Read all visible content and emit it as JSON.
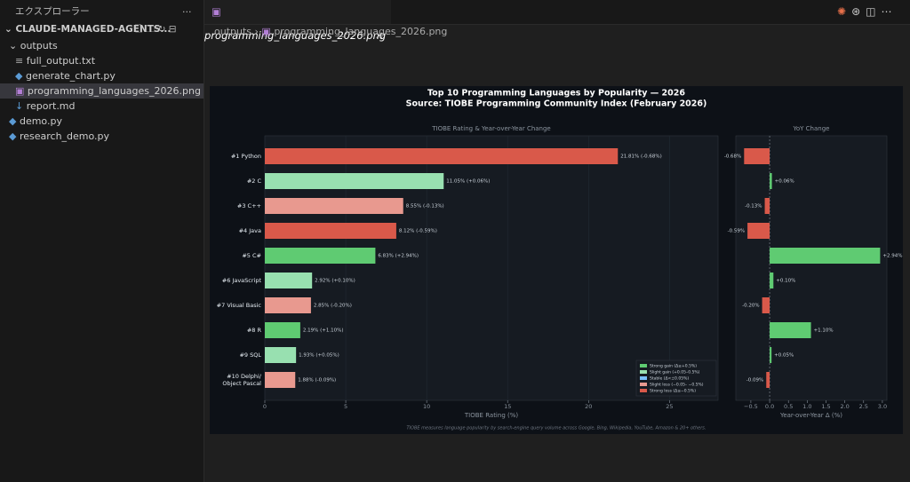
{
  "sidebar": {
    "title": "エクスプローラー",
    "root": "CLAUDE-MANAGED-AGENTS...",
    "tree": [
      {
        "label": "outputs"
      },
      {
        "label": "full_output.txt"
      },
      {
        "label": "generate_chart.py"
      },
      {
        "label": "programming_languages_2026.png"
      },
      {
        "label": "report.md"
      },
      {
        "label": "demo.py"
      },
      {
        "label": "research_demo.py"
      }
    ]
  },
  "editor": {
    "tab": "programming_languages_2026.png",
    "breadcrumb": [
      "outputs",
      "programming_languages_2026.png"
    ]
  },
  "figure": {
    "title": "Top 10 Programming Languages by Popularity — 2026",
    "subtitle": "Source: TIOBE Programming Community Index (February 2026)",
    "footnote": "TIOBE measures language popularity by search-engine query volume across Google, Bing, Wikipedia, YouTube, Amazon & 20+ others."
  },
  "chart_data": [
    {
      "type": "barh",
      "title": "TIOBE Rating & Year-over-Year Change",
      "x_label": "TIOBE Rating (%)",
      "categories": [
        "#1  Python",
        "#2  C",
        "#3  C++",
        "#4  Java",
        "#5  C#",
        "#6  JavaScript",
        "#7  Visual Basic",
        "#8  R",
        "#9  SQL",
        "#10  Delphi/\nObject Pascal"
      ],
      "values": [
        21.81,
        11.05,
        8.55,
        8.12,
        6.83,
        2.92,
        2.85,
        2.19,
        1.93,
        1.88
      ],
      "value_labels": [
        "21.81%  (-0.68%)",
        "11.05%  (+0.06%)",
        "8.55%  (-0.13%)",
        "8.12%  (-0.59%)",
        "6.83%  (+2.94%)",
        "2.92%  (+0.10%)",
        "2.85%  (-0.20%)",
        "2.19%  (+1.10%)",
        "1.93%  (+0.05%)",
        "1.88%  (-0.09%)"
      ],
      "colors": [
        "#d9594a",
        "#98e0b0",
        "#e8998f",
        "#d9594a",
        "#5fcb72",
        "#98e0b0",
        "#e8998f",
        "#5fcb72",
        "#98e0b0",
        "#e8998f"
      ],
      "xlim": [
        0,
        28
      ],
      "xticks": [
        0,
        5,
        10,
        15,
        20,
        25
      ],
      "grid": true,
      "legend": [
        {
          "name": "Strong gain  (Δ≥+0.5%)",
          "color": "#5fcb72"
        },
        {
          "name": "Slight gain  (+0.05–0.5%)",
          "color": "#98e0b0"
        },
        {
          "name": "Stable       (Δ<±0.05%)",
          "color": "#79c0ff"
        },
        {
          "name": "Slight loss  (−0.05– −0.5%)",
          "color": "#e8998f"
        },
        {
          "name": "Strong loss  (Δ≤−0.5%)",
          "color": "#d9594a"
        }
      ],
      "legend_position": "lower right"
    },
    {
      "type": "barh",
      "title": "YoY Change",
      "x_label": "Year-over-Year Δ (%)",
      "values": [
        -0.68,
        0.06,
        -0.13,
        -0.59,
        2.94,
        0.1,
        -0.2,
        1.1,
        0.05,
        -0.09
      ],
      "value_labels": [
        "-0.68%",
        "+0.06%",
        "-0.13%",
        "-0.59%",
        "+2.94%",
        "+0.10%",
        "-0.20%",
        "+1.10%",
        "+0.05%",
        "-0.09%"
      ],
      "colors": [
        "#d9594a",
        "#5fcb72",
        "#d9594a",
        "#d9594a",
        "#5fcb72",
        "#5fcb72",
        "#d9594a",
        "#5fcb72",
        "#5fcb72",
        "#d9594a"
      ],
      "xlim": [
        -0.9,
        3.12
      ],
      "xticks": [
        {
          "value": -0.5,
          "label": "−0.5"
        },
        {
          "value": 0,
          "label": "0.0"
        },
        0.5,
        {
          "value": 1,
          "label": "1.0"
        },
        1.5,
        {
          "value": 2,
          "label": "2.0"
        },
        2.5,
        {
          "value": 3,
          "label": "3.0"
        }
      ],
      "zero_line": true
    }
  ]
}
